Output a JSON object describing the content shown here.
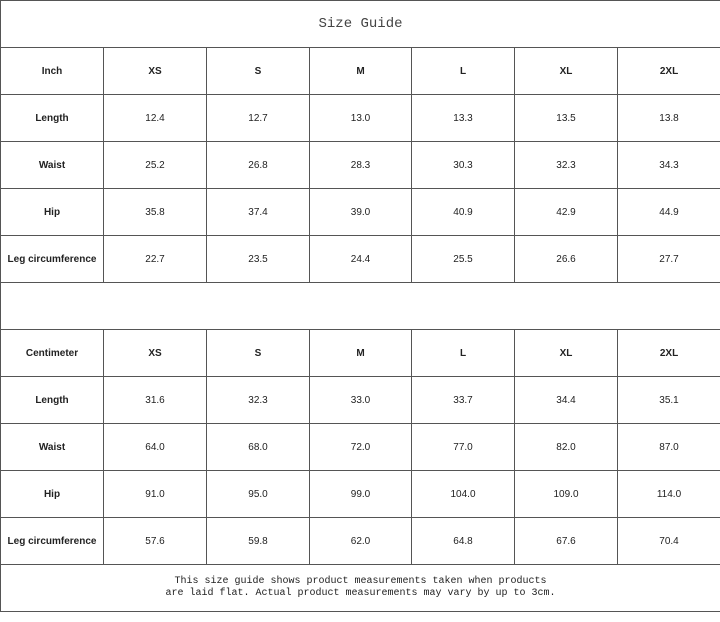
{
  "title": "Size Guide",
  "sizes": [
    "XS",
    "S",
    "M",
    "L",
    "XL",
    "2XL"
  ],
  "inch": {
    "unit_label": "Inch",
    "rows": [
      {
        "label": "Length",
        "values": [
          "12.4",
          "12.7",
          "13.0",
          "13.3",
          "13.5",
          "13.8"
        ]
      },
      {
        "label": "Waist",
        "values": [
          "25.2",
          "26.8",
          "28.3",
          "30.3",
          "32.3",
          "34.3"
        ]
      },
      {
        "label": "Hip",
        "values": [
          "35.8",
          "37.4",
          "39.0",
          "40.9",
          "42.9",
          "44.9"
        ]
      },
      {
        "label": "Leg circumference",
        "values": [
          "22.7",
          "23.5",
          "24.4",
          "25.5",
          "26.6",
          "27.7"
        ]
      }
    ]
  },
  "centimeter": {
    "unit_label": "Centimeter",
    "rows": [
      {
        "label": "Length",
        "values": [
          "31.6",
          "32.3",
          "33.0",
          "33.7",
          "34.4",
          "35.1"
        ]
      },
      {
        "label": "Waist",
        "values": [
          "64.0",
          "68.0",
          "72.0",
          "77.0",
          "82.0",
          "87.0"
        ]
      },
      {
        "label": "Hip",
        "values": [
          "91.0",
          "95.0",
          "99.0",
          "104.0",
          "109.0",
          "114.0"
        ]
      },
      {
        "label": "Leg circumference",
        "values": [
          "57.6",
          "59.8",
          "62.0",
          "64.8",
          "67.6",
          "70.4"
        ]
      }
    ]
  },
  "note": {
    "line1": "This size guide shows product measurements taken when products",
    "line2": "are laid flat. Actual product measurements may vary by up to 3cm."
  }
}
